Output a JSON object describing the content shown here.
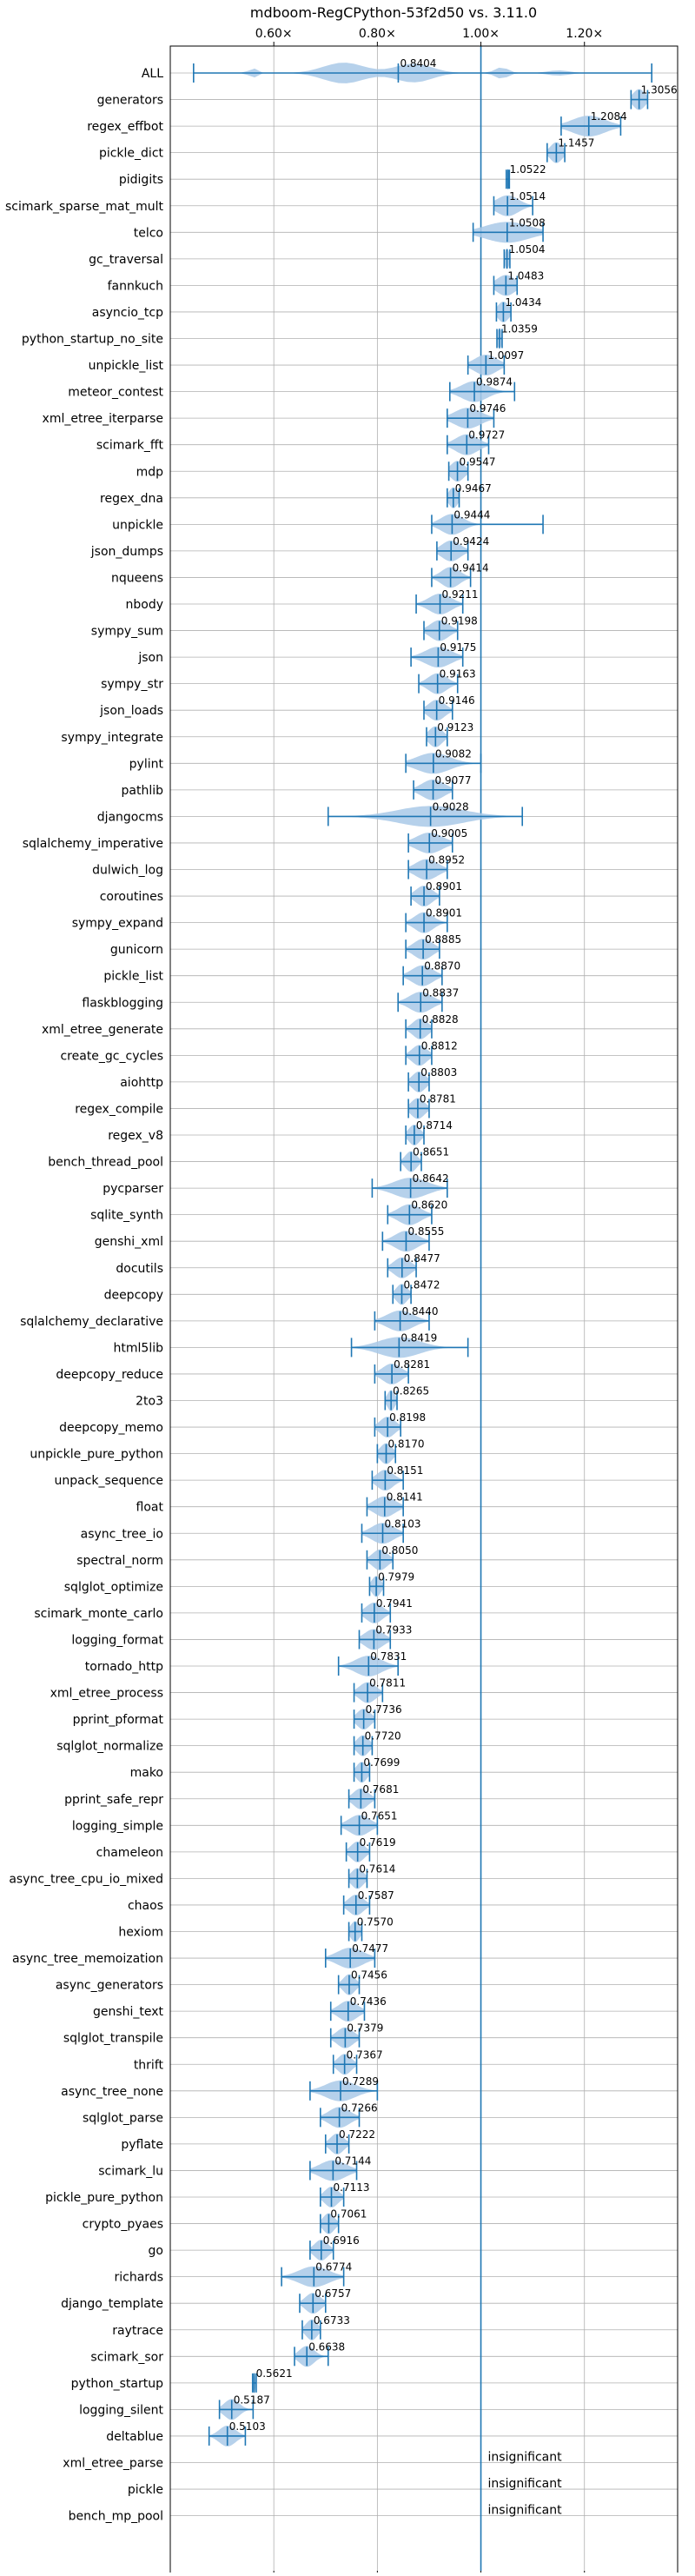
{
  "chart_data": {
    "type": "violin",
    "title": "mdboom-RegCPython-53f2d50 vs. 3.11.0",
    "x_axis": {
      "ticks": [
        0.6,
        0.8,
        1.0,
        1.2
      ],
      "tick_labels": [
        "0.60×",
        "0.80×",
        "1.00×",
        "1.20×"
      ],
      "xlim": [
        0.4,
        1.38
      ],
      "reference_line": 1.0,
      "grid": true
    },
    "accent_color": "#1f77b4",
    "violin_color": "#a9c9e8",
    "insignificant_label": "insignificant",
    "benchmarks": [
      {
        "name": "ALL",
        "label": "0.8404",
        "median": 0.8404,
        "min": 0.445,
        "max": 1.33,
        "spread": 0.09,
        "shape": "multi"
      },
      {
        "name": "generators",
        "label": "1.3056",
        "median": 1.3056,
        "min": 1.29,
        "max": 1.322,
        "spread": 0.016
      },
      {
        "name": "regex_effbot",
        "label": "1.2084",
        "median": 1.2084,
        "min": 1.155,
        "max": 1.27,
        "spread": 0.045
      },
      {
        "name": "pickle_dict",
        "label": "1.1457",
        "median": 1.1457,
        "min": 1.128,
        "max": 1.162,
        "spread": 0.016
      },
      {
        "name": "pidigits",
        "label": "1.0522",
        "median": 1.0522,
        "min": 1.049,
        "max": 1.055,
        "spread": 0.003
      },
      {
        "name": "scimark_sparse_mat_mult",
        "label": "1.0514",
        "median": 1.0514,
        "min": 1.025,
        "max": 1.1,
        "spread": 0.03
      },
      {
        "name": "telco",
        "label": "1.0508",
        "median": 1.0508,
        "min": 0.985,
        "max": 1.12,
        "spread": 0.06
      },
      {
        "name": "gc_traversal",
        "label": "1.0504",
        "median": 1.0504,
        "min": 1.045,
        "max": 1.056,
        "spread": 0.006
      },
      {
        "name": "fannkuch",
        "label": "1.0483",
        "median": 1.0483,
        "min": 1.025,
        "max": 1.07,
        "spread": 0.025
      },
      {
        "name": "asyncio_tcp",
        "label": "1.0434",
        "median": 1.0434,
        "min": 1.03,
        "max": 1.058,
        "spread": 0.015
      },
      {
        "name": "python_startup_no_site",
        "label": "1.0359",
        "median": 1.0359,
        "min": 1.031,
        "max": 1.041,
        "spread": 0.006
      },
      {
        "name": "unpickle_list",
        "label": "1.0097",
        "median": 1.0097,
        "min": 0.975,
        "max": 1.045,
        "spread": 0.03
      },
      {
        "name": "meteor_contest",
        "label": "0.9874",
        "median": 0.9874,
        "min": 0.94,
        "max": 1.065,
        "spread": 0.035
      },
      {
        "name": "xml_etree_iterparse",
        "label": "0.9746",
        "median": 0.9746,
        "min": 0.935,
        "max": 1.025,
        "spread": 0.035
      },
      {
        "name": "scimark_fft",
        "label": "0.9727",
        "median": 0.9727,
        "min": 0.935,
        "max": 1.015,
        "spread": 0.03
      },
      {
        "name": "mdp",
        "label": "0.9547",
        "median": 0.9547,
        "min": 0.938,
        "max": 0.975,
        "spread": 0.018
      },
      {
        "name": "regex_dna",
        "label": "0.9467",
        "median": 0.9467,
        "min": 0.935,
        "max": 0.958,
        "spread": 0.012
      },
      {
        "name": "unpickle",
        "label": "0.9444",
        "median": 0.9444,
        "min": 0.905,
        "max": 1.12,
        "spread": 0.03
      },
      {
        "name": "json_dumps",
        "label": "0.9424",
        "median": 0.9424,
        "min": 0.915,
        "max": 0.975,
        "spread": 0.025
      },
      {
        "name": "nqueens",
        "label": "0.9414",
        "median": 0.9414,
        "min": 0.905,
        "max": 0.98,
        "spread": 0.025
      },
      {
        "name": "nbody",
        "label": "0.9211",
        "median": 0.9211,
        "min": 0.875,
        "max": 0.965,
        "spread": 0.03
      },
      {
        "name": "sympy_sum",
        "label": "0.9198",
        "median": 0.9198,
        "min": 0.89,
        "max": 0.955,
        "spread": 0.025
      },
      {
        "name": "json",
        "label": "0.9175",
        "median": 0.9175,
        "min": 0.865,
        "max": 0.965,
        "spread": 0.035
      },
      {
        "name": "sympy_str",
        "label": "0.9163",
        "median": 0.9163,
        "min": 0.88,
        "max": 0.955,
        "spread": 0.025
      },
      {
        "name": "json_loads",
        "label": "0.9146",
        "median": 0.9146,
        "min": 0.89,
        "max": 0.945,
        "spread": 0.022
      },
      {
        "name": "sympy_integrate",
        "label": "0.9123",
        "median": 0.9123,
        "min": 0.895,
        "max": 0.935,
        "spread": 0.018
      },
      {
        "name": "pylint",
        "label": "0.9082",
        "median": 0.9082,
        "min": 0.855,
        "max": 1.0,
        "spread": 0.045
      },
      {
        "name": "pathlib",
        "label": "0.9077",
        "median": 0.9077,
        "min": 0.87,
        "max": 0.945,
        "spread": 0.03
      },
      {
        "name": "djangocms",
        "label": "0.9028",
        "median": 0.9028,
        "min": 0.705,
        "max": 1.08,
        "spread": 0.09
      },
      {
        "name": "sqlalchemy_imperative",
        "label": "0.9005",
        "median": 0.9005,
        "min": 0.86,
        "max": 0.945,
        "spread": 0.035
      },
      {
        "name": "dulwich_log",
        "label": "0.8952",
        "median": 0.8952,
        "min": 0.86,
        "max": 0.935,
        "spread": 0.03
      },
      {
        "name": "coroutines",
        "label": "0.8901",
        "median": 0.8901,
        "min": 0.865,
        "max": 0.92,
        "spread": 0.022
      },
      {
        "name": "sympy_expand",
        "label": "0.8901",
        "median": 0.8901,
        "min": 0.855,
        "max": 0.935,
        "spread": 0.025
      },
      {
        "name": "gunicorn",
        "label": "0.8885",
        "median": 0.8885,
        "min": 0.855,
        "max": 0.92,
        "spread": 0.025
      },
      {
        "name": "pickle_list",
        "label": "0.8870",
        "median": 0.887,
        "min": 0.85,
        "max": 0.925,
        "spread": 0.028
      },
      {
        "name": "flaskblogging",
        "label": "0.8837",
        "median": 0.8837,
        "min": 0.84,
        "max": 0.925,
        "spread": 0.03
      },
      {
        "name": "xml_etree_generate",
        "label": "0.8828",
        "median": 0.8828,
        "min": 0.855,
        "max": 0.905,
        "spread": 0.02
      },
      {
        "name": "create_gc_cycles",
        "label": "0.8812",
        "median": 0.8812,
        "min": 0.855,
        "max": 0.905,
        "spread": 0.02
      },
      {
        "name": "aiohttp",
        "label": "0.8803",
        "median": 0.8803,
        "min": 0.86,
        "max": 0.9,
        "spread": 0.018
      },
      {
        "name": "regex_compile",
        "label": "0.8781",
        "median": 0.8781,
        "min": 0.86,
        "max": 0.9,
        "spread": 0.018
      },
      {
        "name": "regex_v8",
        "label": "0.8714",
        "median": 0.8714,
        "min": 0.855,
        "max": 0.89,
        "spread": 0.015
      },
      {
        "name": "bench_thread_pool",
        "label": "0.8651",
        "median": 0.8651,
        "min": 0.845,
        "max": 0.885,
        "spread": 0.015
      },
      {
        "name": "pycparser",
        "label": "0.8642",
        "median": 0.8642,
        "min": 0.79,
        "max": 0.935,
        "spread": 0.045
      },
      {
        "name": "sqlite_synth",
        "label": "0.8620",
        "median": 0.862,
        "min": 0.82,
        "max": 0.905,
        "spread": 0.03
      },
      {
        "name": "genshi_xml",
        "label": "0.8555",
        "median": 0.8555,
        "min": 0.81,
        "max": 0.9,
        "spread": 0.03
      },
      {
        "name": "docutils",
        "label": "0.8477",
        "median": 0.8477,
        "min": 0.82,
        "max": 0.875,
        "spread": 0.022
      },
      {
        "name": "deepcopy",
        "label": "0.8472",
        "median": 0.8472,
        "min": 0.83,
        "max": 0.865,
        "spread": 0.015
      },
      {
        "name": "sqlalchemy_declarative",
        "label": "0.8440",
        "median": 0.844,
        "min": 0.795,
        "max": 0.9,
        "spread": 0.035
      },
      {
        "name": "html5lib",
        "label": "0.8419",
        "median": 0.8419,
        "min": 0.75,
        "max": 0.975,
        "spread": 0.055
      },
      {
        "name": "deepcopy_reduce",
        "label": "0.8281",
        "median": 0.8281,
        "min": 0.795,
        "max": 0.86,
        "spread": 0.025
      },
      {
        "name": "2to3",
        "label": "0.8265",
        "median": 0.8265,
        "min": 0.815,
        "max": 0.838,
        "spread": 0.01
      },
      {
        "name": "deepcopy_memo",
        "label": "0.8198",
        "median": 0.8198,
        "min": 0.795,
        "max": 0.845,
        "spread": 0.02
      },
      {
        "name": "unpickle_pure_python",
        "label": "0.8170",
        "median": 0.817,
        "min": 0.8,
        "max": 0.835,
        "spread": 0.016
      },
      {
        "name": "unpack_sequence",
        "label": "0.8151",
        "median": 0.8151,
        "min": 0.79,
        "max": 0.85,
        "spread": 0.022
      },
      {
        "name": "float",
        "label": "0.8141",
        "median": 0.8141,
        "min": 0.78,
        "max": 0.85,
        "spread": 0.028
      },
      {
        "name": "async_tree_io",
        "label": "0.8103",
        "median": 0.8103,
        "min": 0.77,
        "max": 0.85,
        "spread": 0.03
      },
      {
        "name": "spectral_norm",
        "label": "0.8050",
        "median": 0.805,
        "min": 0.78,
        "max": 0.83,
        "spread": 0.02
      },
      {
        "name": "sqlglot_optimize",
        "label": "0.7979",
        "median": 0.7979,
        "min": 0.785,
        "max": 0.812,
        "spread": 0.012
      },
      {
        "name": "scimark_monte_carlo",
        "label": "0.7941",
        "median": 0.7941,
        "min": 0.77,
        "max": 0.825,
        "spread": 0.022
      },
      {
        "name": "logging_format",
        "label": "0.7933",
        "median": 0.7933,
        "min": 0.765,
        "max": 0.825,
        "spread": 0.025
      },
      {
        "name": "tornado_http",
        "label": "0.7831",
        "median": 0.7831,
        "min": 0.725,
        "max": 0.84,
        "spread": 0.035
      },
      {
        "name": "xml_etree_process",
        "label": "0.7811",
        "median": 0.7811,
        "min": 0.755,
        "max": 0.81,
        "spread": 0.022
      },
      {
        "name": "pprint_pformat",
        "label": "0.7736",
        "median": 0.7736,
        "min": 0.755,
        "max": 0.795,
        "spread": 0.018
      },
      {
        "name": "sqlglot_normalize",
        "label": "0.7720",
        "median": 0.772,
        "min": 0.755,
        "max": 0.79,
        "spread": 0.016
      },
      {
        "name": "mako",
        "label": "0.7699",
        "median": 0.7699,
        "min": 0.755,
        "max": 0.785,
        "spread": 0.014
      },
      {
        "name": "pprint_safe_repr",
        "label": "0.7681",
        "median": 0.7681,
        "min": 0.745,
        "max": 0.795,
        "spread": 0.02
      },
      {
        "name": "logging_simple",
        "label": "0.7651",
        "median": 0.7651,
        "min": 0.73,
        "max": 0.8,
        "spread": 0.028
      },
      {
        "name": "chameleon",
        "label": "0.7619",
        "median": 0.7619,
        "min": 0.74,
        "max": 0.785,
        "spread": 0.018
      },
      {
        "name": "async_tree_cpu_io_mixed",
        "label": "0.7614",
        "median": 0.7614,
        "min": 0.745,
        "max": 0.78,
        "spread": 0.016
      },
      {
        "name": "chaos",
        "label": "0.7587",
        "median": 0.7587,
        "min": 0.735,
        "max": 0.785,
        "spread": 0.02
      },
      {
        "name": "hexiom",
        "label": "0.7570",
        "median": 0.757,
        "min": 0.745,
        "max": 0.77,
        "spread": 0.012
      },
      {
        "name": "async_tree_memoization",
        "label": "0.7477",
        "median": 0.7477,
        "min": 0.7,
        "max": 0.795,
        "spread": 0.035
      },
      {
        "name": "async_generators",
        "label": "0.7456",
        "median": 0.7456,
        "min": 0.725,
        "max": 0.765,
        "spread": 0.016
      },
      {
        "name": "genshi_text",
        "label": "0.7436",
        "median": 0.7436,
        "min": 0.71,
        "max": 0.775,
        "spread": 0.025
      },
      {
        "name": "sqlglot_transpile",
        "label": "0.7379",
        "median": 0.7379,
        "min": 0.71,
        "max": 0.765,
        "spread": 0.022
      },
      {
        "name": "thrift",
        "label": "0.7367",
        "median": 0.7367,
        "min": 0.715,
        "max": 0.76,
        "spread": 0.018
      },
      {
        "name": "async_tree_none",
        "label": "0.7289",
        "median": 0.7289,
        "min": 0.67,
        "max": 0.8,
        "spread": 0.04
      },
      {
        "name": "sqlglot_parse",
        "label": "0.7266",
        "median": 0.7266,
        "min": 0.69,
        "max": 0.765,
        "spread": 0.028
      },
      {
        "name": "pyflate",
        "label": "0.7222",
        "median": 0.7222,
        "min": 0.7,
        "max": 0.745,
        "spread": 0.018
      },
      {
        "name": "scimark_lu",
        "label": "0.7144",
        "median": 0.7144,
        "min": 0.67,
        "max": 0.76,
        "spread": 0.035
      },
      {
        "name": "pickle_pure_python",
        "label": "0.7113",
        "median": 0.7113,
        "min": 0.69,
        "max": 0.735,
        "spread": 0.018
      },
      {
        "name": "crypto_pyaes",
        "label": "0.7061",
        "median": 0.7061,
        "min": 0.69,
        "max": 0.725,
        "spread": 0.015
      },
      {
        "name": "go",
        "label": "0.6916",
        "median": 0.6916,
        "min": 0.67,
        "max": 0.715,
        "spread": 0.018
      },
      {
        "name": "richards",
        "label": "0.6774",
        "median": 0.6774,
        "min": 0.615,
        "max": 0.735,
        "spread": 0.04
      },
      {
        "name": "django_template",
        "label": "0.6757",
        "median": 0.6757,
        "min": 0.65,
        "max": 0.7,
        "spread": 0.02
      },
      {
        "name": "raytrace",
        "label": "0.6733",
        "median": 0.6733,
        "min": 0.655,
        "max": 0.69,
        "spread": 0.015
      },
      {
        "name": "scimark_sor",
        "label": "0.6638",
        "median": 0.6638,
        "min": 0.64,
        "max": 0.705,
        "spread": 0.02
      },
      {
        "name": "python_startup",
        "label": "0.5621",
        "median": 0.5621,
        "min": 0.559,
        "max": 0.566,
        "spread": 0.003
      },
      {
        "name": "logging_silent",
        "label": "0.5187",
        "median": 0.5187,
        "min": 0.495,
        "max": 0.56,
        "spread": 0.02
      },
      {
        "name": "deltablue",
        "label": "0.5103",
        "median": 0.5103,
        "min": 0.475,
        "max": 0.545,
        "spread": 0.022
      },
      {
        "name": "xml_etree_parse",
        "label": "",
        "insignificant": true
      },
      {
        "name": "pickle",
        "label": "",
        "insignificant": true
      },
      {
        "name": "bench_mp_pool",
        "label": "",
        "insignificant": true
      }
    ]
  }
}
